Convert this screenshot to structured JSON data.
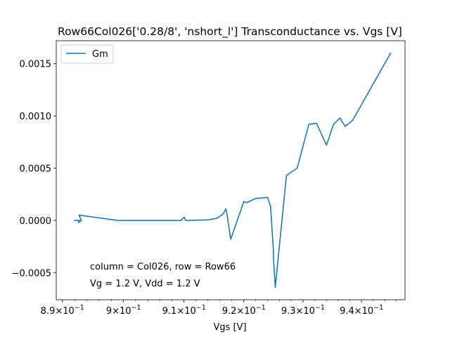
{
  "chart_data": {
    "type": "line",
    "title": "Row66Col026['0.28/8', 'nshort_l'] Transconductance vs. Vgs [V]",
    "xlabel": "Vgs [V]",
    "ylabel": "",
    "x_scale": "log",
    "xlim": [
      0.889,
      0.9475
    ],
    "ylim": [
      -0.00076,
      0.00172
    ],
    "x_ticks": [
      {
        "value": 0.89,
        "base": "8.9",
        "exp": "−1"
      },
      {
        "value": 0.9,
        "base": "9",
        "exp": "−1"
      },
      {
        "value": 0.91,
        "base": "9.1",
        "exp": "−1"
      },
      {
        "value": 0.92,
        "base": "9.2",
        "exp": "−1"
      },
      {
        "value": 0.93,
        "base": "9.3",
        "exp": "−1"
      },
      {
        "value": 0.94,
        "base": "9.4",
        "exp": "−1"
      }
    ],
    "y_ticks": [
      {
        "value": -0.0005,
        "label": "−0.0005"
      },
      {
        "value": 0.0,
        "label": "0.0000"
      },
      {
        "value": 0.0005,
        "label": "0.0005"
      },
      {
        "value": 0.001,
        "label": "0.0010"
      },
      {
        "value": 0.0015,
        "label": "0.0015"
      }
    ],
    "grid": false,
    "legend_position": "top-left",
    "series": [
      {
        "name": "Gm",
        "color": "#1f77b4",
        "x": [
          0.892,
          0.8928,
          0.8926,
          0.8931,
          0.8927,
          0.899,
          0.9095,
          0.91,
          0.9103,
          0.914,
          0.9155,
          0.9165,
          0.917,
          0.9172,
          0.9178,
          0.92,
          0.9205,
          0.922,
          0.924,
          0.9245,
          0.925,
          0.925,
          0.9253,
          0.9272,
          0.929,
          0.931,
          0.9323,
          0.934,
          0.9352,
          0.9363,
          0.9372,
          0.9385,
          0.945
        ],
        "y": [
          0.0,
          0.0,
          -2e-05,
          0.0,
          5e-05,
          0.0,
          0.0,
          3e-05,
          0.0,
          5e-06,
          2e-05,
          6e-05,
          0.00011,
          5e-05,
          -0.00018,
          0.00018,
          0.00017,
          0.00021,
          0.00022,
          0.00014,
          -0.0003,
          -0.00036,
          -0.00064,
          0.00043,
          0.0005,
          0.00092,
          0.00093,
          0.00072,
          0.00092,
          0.00098,
          0.0009,
          0.00096,
          0.0016
        ]
      }
    ],
    "annotations": [
      "column = Col026, row = Row66",
      "Vg = 1.2 V, Vdd = 1.2 V"
    ]
  }
}
